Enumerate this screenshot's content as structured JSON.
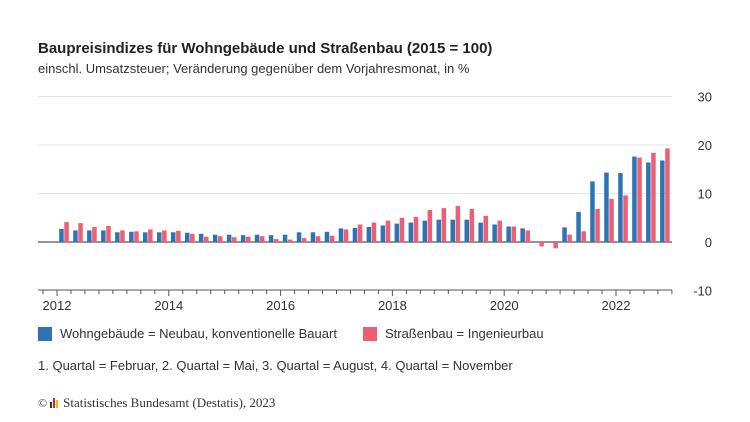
{
  "chart_data": {
    "type": "bar",
    "title": "Baupreisindizes für Wohngebäude und Straßenbau (2015 = 100)",
    "subtitle": "einschl. Umsatzsteuer; Veränderung gegenüber dem Vorjahresmonat, in %",
    "xlabel": "",
    "ylabel": "",
    "ylim": [
      -10,
      30
    ],
    "yticks": [
      30,
      20,
      10,
      0,
      -10
    ],
    "xticks": [
      "2012",
      "2014",
      "2016",
      "2018",
      "2020",
      "2022"
    ],
    "x_start_year": 2012,
    "grid": true,
    "legend_position": "bottom-left",
    "categories": [
      "Feb 2012",
      "Mai 2012",
      "Aug 2012",
      "Nov 2012",
      "Feb 2013",
      "Mai 2013",
      "Aug 2013",
      "Nov 2013",
      "Feb 2014",
      "Mai 2014",
      "Aug 2014",
      "Nov 2014",
      "Feb 2015",
      "Mai 2015",
      "Aug 2015",
      "Nov 2015",
      "Feb 2016",
      "Mai 2016",
      "Aug 2016",
      "Nov 2016",
      "Feb 2017",
      "Mai 2017",
      "Aug 2017",
      "Nov 2017",
      "Feb 2018",
      "Mai 2018",
      "Aug 2018",
      "Nov 2018",
      "Feb 2019",
      "Mai 2019",
      "Aug 2019",
      "Nov 2019",
      "Feb 2020",
      "Mai 2020",
      "Aug 2020",
      "Nov 2020",
      "Feb 2021",
      "Mai 2021",
      "Aug 2021",
      "Nov 2021",
      "Feb 2022",
      "Mai 2022",
      "Aug 2022",
      "Nov 2022"
    ],
    "series": [
      {
        "name": "Wohngebäude = Neubau, konventionelle Bauart",
        "color": "#2e74b5",
        "values": [
          2.7,
          2.4,
          2.4,
          2.4,
          2.0,
          2.1,
          2.0,
          2.0,
          2.0,
          1.9,
          1.7,
          1.5,
          1.5,
          1.4,
          1.5,
          1.4,
          1.5,
          2.0,
          2.0,
          2.1,
          2.8,
          2.9,
          3.1,
          3.4,
          3.8,
          4.0,
          4.4,
          4.6,
          4.6,
          4.6,
          4.0,
          3.6,
          3.2,
          2.8,
          0.0,
          0.0,
          3.0,
          6.2,
          12.5,
          14.3,
          14.2,
          17.6,
          16.4,
          16.8
        ]
      },
      {
        "name": "Straßenbau = Ingenieurbau",
        "color": "#ee5f73",
        "values": [
          4.1,
          3.9,
          3.1,
          3.3,
          2.4,
          2.2,
          2.6,
          2.4,
          2.3,
          1.7,
          1.1,
          1.2,
          1.0,
          1.1,
          1.2,
          0.6,
          0.5,
          0.8,
          1.2,
          1.3,
          2.6,
          3.6,
          4.0,
          4.4,
          5.0,
          5.2,
          6.6,
          7.0,
          7.4,
          6.8,
          5.4,
          4.4,
          3.2,
          2.4,
          -0.9,
          -1.3,
          1.5,
          2.2,
          6.8,
          8.9,
          9.6,
          17.4,
          18.4,
          19.3
        ]
      }
    ]
  },
  "legend": {
    "items": [
      {
        "label": "Wohngebäude = Neubau, konventionelle Bauart",
        "color": "#2e74b5"
      },
      {
        "label": "Straßenbau = Ingenieurbau",
        "color": "#ee5f73"
      }
    ]
  },
  "note": "1. Quartal = Februar, 2. Quartal = Mai, 3. Quartal = August, 4. Quartal = November",
  "source": {
    "copyright_symbol": "©",
    "text": "Statistisches Bundesamt (Destatis), 2023"
  }
}
